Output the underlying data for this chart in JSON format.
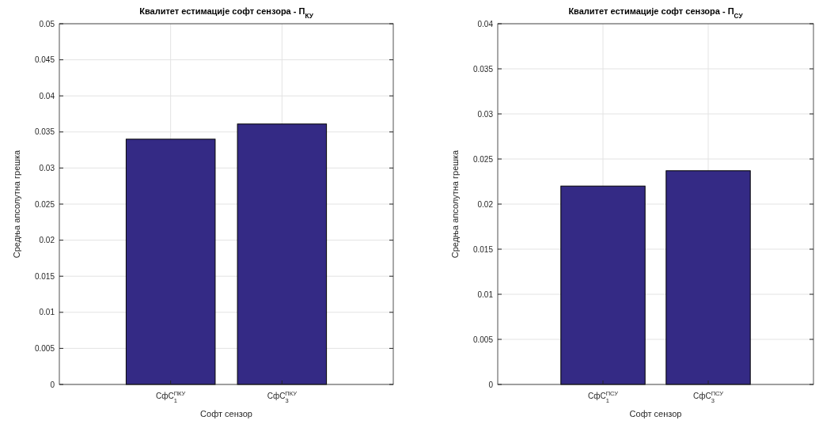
{
  "chart_data": [
    {
      "type": "bar",
      "title": "Квалитет естимације софт сензора - П$_{КУ}$",
      "xlabel": "Софт сензор",
      "ylabel": "Средња апсолутна грешка",
      "categories": [
        "СфС$_{1}$$^{ПКУ}$",
        "СфС$_{3}$$^{ПКУ}$"
      ],
      "values": [
        0.034,
        0.0361
      ],
      "color": "#342a85",
      "ylim": [
        0,
        0.05
      ],
      "yticks": [
        0,
        0.005,
        0.01,
        0.015,
        0.02,
        0.025,
        0.03,
        0.035,
        0.04,
        0.045,
        0.05
      ],
      "grid": true
    },
    {
      "type": "bar",
      "title": "Квалитет естимације софт сензора - П$_{СУ}$",
      "xlabel": "Софт сензор",
      "ylabel": "Средња апсолутна грешка",
      "categories": [
        "СфС$_{1}$$^{ПСУ}$",
        "СфС$_{3}$$^{ПСУ}$"
      ],
      "values": [
        0.022,
        0.0237
      ],
      "color": "#342a85",
      "ylim": [
        0,
        0.04
      ],
      "yticks": [
        0,
        0.005,
        0.01,
        0.015,
        0.02,
        0.025,
        0.03,
        0.035,
        0.04
      ],
      "grid": true
    }
  ]
}
